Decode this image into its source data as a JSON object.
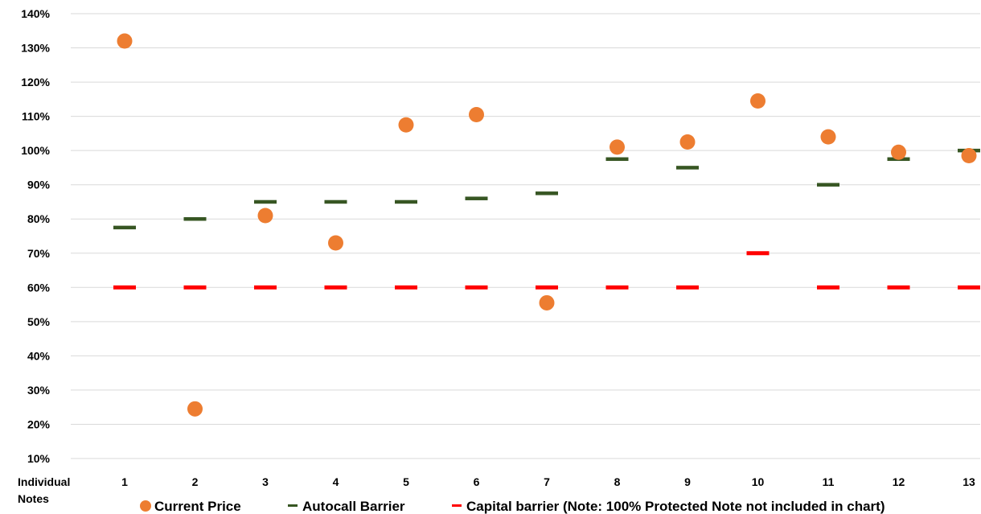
{
  "chart_data": {
    "type": "scatter",
    "x_title_lines": [
      "Individual",
      "Notes"
    ],
    "categories": [
      "1",
      "2",
      "3",
      "4",
      "5",
      "6",
      "7",
      "8",
      "9",
      "10",
      "11",
      "12",
      "13"
    ],
    "y_ticks": [
      "10%",
      "20%",
      "30%",
      "40%",
      "50%",
      "60%",
      "70%",
      "80%",
      "90%",
      "100%",
      "110%",
      "120%",
      "130%",
      "140%"
    ],
    "ylim": [
      10,
      140
    ],
    "y_unit": "%",
    "grid": "horizontal",
    "legend_position": "bottom",
    "series": [
      {
        "name": "Current Price",
        "marker": "circle",
        "color": "#ED7D31",
        "values": [
          132,
          24.5,
          81,
          73,
          107.5,
          110.5,
          55.5,
          101,
          102.5,
          114.5,
          104,
          99.5,
          98.5
        ]
      },
      {
        "name": "Autocall Barrier",
        "marker": "dash",
        "color": "#375623",
        "values": [
          77.5,
          80,
          85,
          85,
          85,
          86,
          87.5,
          97.5,
          95,
          null,
          90,
          97.5,
          100
        ]
      },
      {
        "name": "Capital barrier (Note: 100% Protected Note not included in chart)",
        "marker": "dash",
        "color": "#FF0000",
        "values": [
          60,
          60,
          60,
          60,
          60,
          60,
          60,
          60,
          60,
          70,
          60,
          60,
          60
        ]
      }
    ]
  }
}
